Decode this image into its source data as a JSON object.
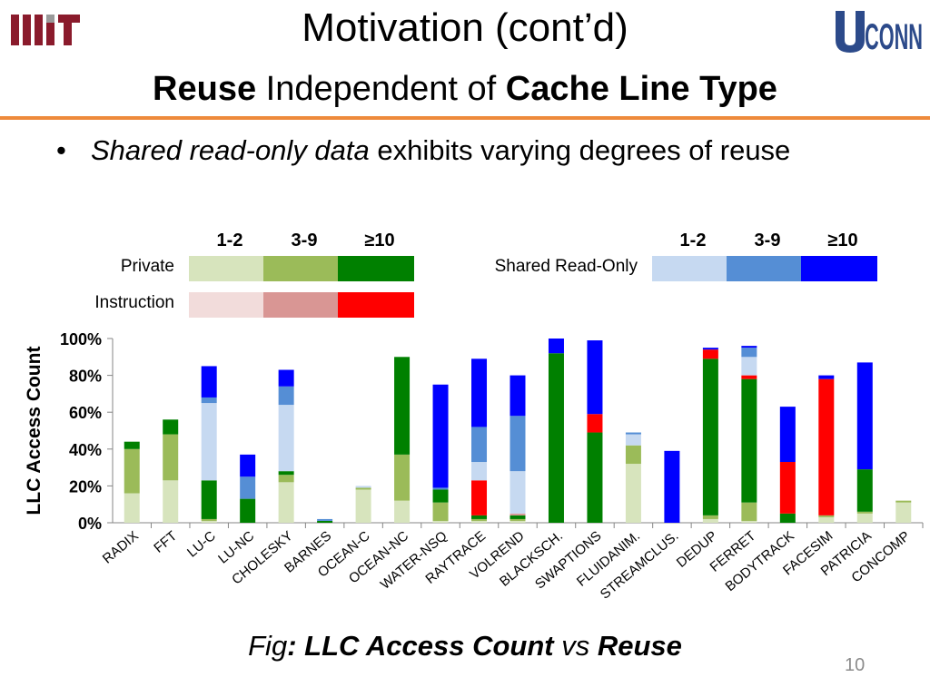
{
  "slide": {
    "title": "Motivation (cont’d)",
    "subtitle_parts": [
      "Reuse",
      " Independent of ",
      "Cache Line Type"
    ],
    "bullet": {
      "italic": "Shared read-only data",
      "rest": " exhibits varying degrees of reuse"
    },
    "caption_parts": [
      "Fig",
      ": ",
      "LLC Access Count",
      " vs ",
      "Reuse"
    ],
    "page_number": "10",
    "logos": {
      "left": "MIT",
      "right": "UCONN"
    }
  },
  "chart_data": {
    "type": "bar",
    "stacked": true,
    "ylabel": "LLC Access Count",
    "ylim": [
      0,
      100
    ],
    "yticks": [
      "0%",
      "20%",
      "40%",
      "60%",
      "80%",
      "100%"
    ],
    "grid": false,
    "legend": {
      "placement": "top",
      "levels": [
        "1-2",
        "3-9",
        "≥10"
      ],
      "groups": [
        {
          "name": "Private",
          "colors": [
            "#d7e4bd",
            "#9bbb59",
            "#008000"
          ]
        },
        {
          "name": "Instruction",
          "colors": [
            "#f2dcdb",
            "#d99694",
            "#ff0000"
          ]
        },
        {
          "name": "Shared Read-Only",
          "colors": [
            "#c6d9f1",
            "#558ed5",
            "#0000ff"
          ]
        }
      ]
    },
    "categories": [
      "RADIX",
      "FFT",
      "LU-C",
      "LU-NC",
      "CHOLESKY",
      "BARNES",
      "OCEAN-C",
      "OCEAN-NC",
      "WATER-NSQ",
      "RAYTRACE",
      "VOLREND",
      "BLACKSCH.",
      "SWAPTIONS",
      "FLUIDANIM.",
      "STREAMCLUS.",
      "DEDUP",
      "FERRET",
      "BODYTRACK",
      "FACESIM",
      "PATRICIA",
      "CONCOMP"
    ],
    "segment_order": [
      "private_1_2",
      "private_3_9",
      "private_ge10",
      "instruction_1_2",
      "instruction_3_9",
      "instruction_ge10",
      "shared_ro_1_2",
      "shared_ro_3_9",
      "shared_ro_ge10"
    ],
    "series": [
      {
        "key": "private_1_2",
        "group": "Private",
        "level": "1-2",
        "color": "#d7e4bd",
        "values": [
          16,
          23,
          1,
          0,
          22,
          0,
          18,
          12,
          1,
          1,
          1,
          0,
          0,
          32,
          0,
          2,
          1,
          0,
          3,
          5,
          11
        ]
      },
      {
        "key": "private_3_9",
        "group": "Private",
        "level": "3-9",
        "color": "#9bbb59",
        "values": [
          24,
          25,
          1,
          0,
          4,
          0,
          1,
          25,
          10,
          1,
          1,
          0,
          0,
          10,
          0,
          2,
          10,
          0,
          1,
          1,
          1
        ]
      },
      {
        "key": "private_ge10",
        "group": "Private",
        "level": "≥10",
        "color": "#008000",
        "values": [
          4,
          8,
          21,
          13,
          2,
          1,
          0,
          53,
          7,
          2,
          2,
          92,
          49,
          0,
          0,
          85,
          67,
          5,
          0,
          23,
          0
        ]
      },
      {
        "key": "instruction_1_2",
        "group": "Instruction",
        "level": "1-2",
        "color": "#f2dcdb",
        "values": [
          0,
          0,
          0,
          0,
          0,
          0,
          0,
          0,
          0,
          0,
          0,
          0,
          0,
          0,
          0,
          0,
          0,
          0,
          0,
          0,
          0
        ]
      },
      {
        "key": "instruction_3_9",
        "group": "Instruction",
        "level": "3-9",
        "color": "#d99694",
        "values": [
          0,
          0,
          0,
          0,
          0,
          0,
          0,
          0,
          0,
          0,
          1,
          0,
          0,
          0,
          0,
          0,
          0,
          0,
          0,
          0,
          0
        ]
      },
      {
        "key": "instruction_ge10",
        "group": "Instruction",
        "level": "≥10",
        "color": "#ff0000",
        "values": [
          0,
          0,
          0,
          0,
          0,
          0,
          0,
          0,
          0,
          19,
          0,
          0,
          10,
          0,
          0,
          5,
          2,
          28,
          74,
          0,
          0
        ]
      },
      {
        "key": "shared_ro_1_2",
        "group": "Shared Read-Only",
        "level": "1-2",
        "color": "#c6d9f1",
        "values": [
          0,
          0,
          42,
          0,
          36,
          0,
          1,
          0,
          0,
          10,
          23,
          0,
          0,
          6,
          0,
          0,
          10,
          0,
          0,
          0,
          0
        ]
      },
      {
        "key": "shared_ro_3_9",
        "group": "Shared Read-Only",
        "level": "3-9",
        "color": "#558ed5",
        "values": [
          0,
          0,
          3,
          12,
          10,
          1,
          0,
          0,
          1,
          19,
          30,
          0,
          0,
          1,
          0,
          0,
          5,
          0,
          0,
          0,
          0
        ]
      },
      {
        "key": "shared_ro_ge10",
        "group": "Shared Read-Only",
        "level": "≥10",
        "color": "#0000ff",
        "values": [
          0,
          0,
          17,
          12,
          9,
          0,
          0,
          0,
          56,
          37,
          22,
          8,
          40,
          0,
          39,
          1,
          1,
          30,
          2,
          58,
          0
        ]
      }
    ]
  }
}
